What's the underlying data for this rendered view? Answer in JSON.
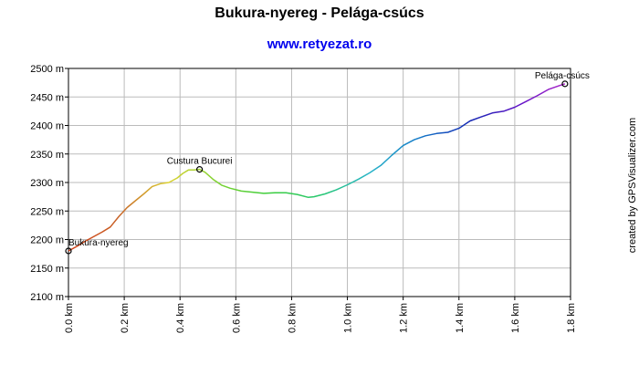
{
  "chart_data": {
    "type": "line",
    "title": "Bukura-nyereg - Pelága-csúcs",
    "subtitle": "www.retyezat.ro",
    "credit": "created by GPSVisualizer.com",
    "xlabel": "",
    "ylabel": "",
    "xlim": [
      0.0,
      1.8
    ],
    "ylim": [
      2100,
      2500
    ],
    "x_ticks": [
      {
        "value": 0.0,
        "label": "0.0 km"
      },
      {
        "value": 0.2,
        "label": "0.2 km"
      },
      {
        "value": 0.4,
        "label": "0.4 km"
      },
      {
        "value": 0.6,
        "label": "0.6 km"
      },
      {
        "value": 0.8,
        "label": "0.8 km"
      },
      {
        "value": 1.0,
        "label": "1.0 km"
      },
      {
        "value": 1.2,
        "label": "1.2 km"
      },
      {
        "value": 1.4,
        "label": "1.4 km"
      },
      {
        "value": 1.6,
        "label": "1.6 km"
      },
      {
        "value": 1.8,
        "label": "1.8 km"
      }
    ],
    "y_ticks": [
      {
        "value": 2100,
        "label": "2100 m"
      },
      {
        "value": 2150,
        "label": "2150 m"
      },
      {
        "value": 2200,
        "label": "2200 m"
      },
      {
        "value": 2250,
        "label": "2250 m"
      },
      {
        "value": 2300,
        "label": "2300 m"
      },
      {
        "value": 2350,
        "label": "2350 m"
      },
      {
        "value": 2400,
        "label": "2400 m"
      },
      {
        "value": 2450,
        "label": "2450 m"
      },
      {
        "value": 2500,
        "label": "2500 m"
      }
    ],
    "grid": true,
    "series": [
      {
        "x": [
          0.0,
          0.03,
          0.06,
          0.09,
          0.12,
          0.15,
          0.18,
          0.21,
          0.24,
          0.27,
          0.3,
          0.33,
          0.36,
          0.39,
          0.41,
          0.43,
          0.45,
          0.47,
          0.49,
          0.52,
          0.55,
          0.58,
          0.62,
          0.66,
          0.7,
          0.74,
          0.78,
          0.82,
          0.86,
          0.88,
          0.92,
          0.96,
          1.0,
          1.04,
          1.08,
          1.12,
          1.16,
          1.2,
          1.24,
          1.28,
          1.32,
          1.36,
          1.4,
          1.44,
          1.48,
          1.52,
          1.56,
          1.6,
          1.64,
          1.68,
          1.72,
          1.76,
          1.78
        ],
        "values": [
          2180,
          2188,
          2197,
          2205,
          2213,
          2222,
          2240,
          2256,
          2268,
          2280,
          2293,
          2298,
          2300,
          2308,
          2316,
          2322,
          2322,
          2323,
          2318,
          2305,
          2295,
          2290,
          2285,
          2283,
          2281,
          2282,
          2282,
          2279,
          2274,
          2275,
          2280,
          2287,
          2296,
          2306,
          2317,
          2330,
          2348,
          2365,
          2375,
          2382,
          2386,
          2388,
          2395,
          2408,
          2415,
          2422,
          2425,
          2432,
          2442,
          2452,
          2463,
          2470,
          2473
        ],
        "color_stops": [
          "#d23c14",
          "#c86428",
          "#dcd232",
          "#7ad232",
          "#3ccd3c",
          "#28c870",
          "#28b4c8",
          "#1478c8",
          "#1428b4",
          "#6414c8",
          "#b428c8"
        ]
      }
    ],
    "annotations": [
      {
        "x": 0.0,
        "y": 2180,
        "label": "Bukura-nyereg"
      },
      {
        "x": 0.47,
        "y": 2323,
        "label": "Custura Bucurei"
      },
      {
        "x": 1.78,
        "y": 2473,
        "label": "Pelága-csúcs"
      }
    ]
  }
}
